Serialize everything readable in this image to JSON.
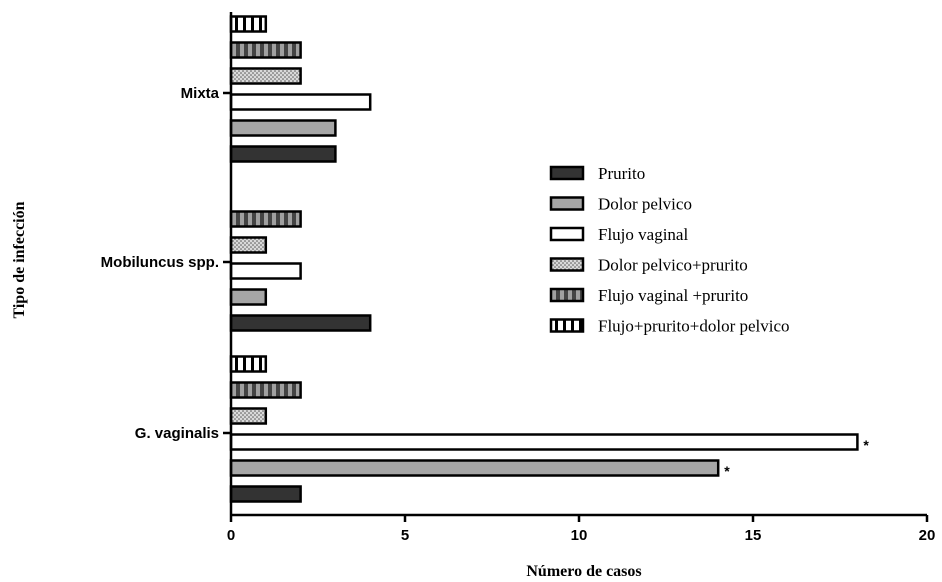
{
  "chart_data": {
    "type": "bar",
    "orientation": "horizontal",
    "categories": [
      "G. vaginalis",
      "Mobiluncus spp.",
      "Mixta"
    ],
    "series": [
      {
        "name": "Prurito",
        "values": [
          2,
          4,
          3
        ],
        "fill": "#333333",
        "pattern": "solid"
      },
      {
        "name": "Dolor pelvico",
        "values": [
          14,
          1,
          3
        ],
        "fill": "#a6a6a6",
        "pattern": "solid"
      },
      {
        "name": "Flujo vaginal",
        "values": [
          18,
          2,
          4
        ],
        "fill": "#ffffff",
        "pattern": "solid"
      },
      {
        "name": "Dolor pelvico+prurito",
        "values": [
          1,
          1,
          2
        ],
        "fill": "#d9d9d9",
        "pattern": "dots"
      },
      {
        "name": "Flujo vaginal +prurito",
        "values": [
          2,
          2,
          2
        ],
        "fill": "#555555",
        "pattern": "vstripes"
      },
      {
        "name": "Flujo+prurito+dolor pelvico",
        "values": [
          1,
          0,
          1
        ],
        "fill": "#ffffff",
        "pattern": "vlines"
      }
    ],
    "xlabel": "Número de casos",
    "ylabel": "Tipo de infección",
    "xlim": [
      0,
      20
    ],
    "xticks": [
      "0",
      "5",
      "10",
      "15",
      "20"
    ],
    "annotations": [
      {
        "category": "G. vaginalis",
        "series": "Flujo vaginal",
        "text": "*"
      },
      {
        "category": "G. vaginalis",
        "series": "Dolor pelvico",
        "text": "*"
      }
    ],
    "legend_position": "right",
    "grid": false
  }
}
